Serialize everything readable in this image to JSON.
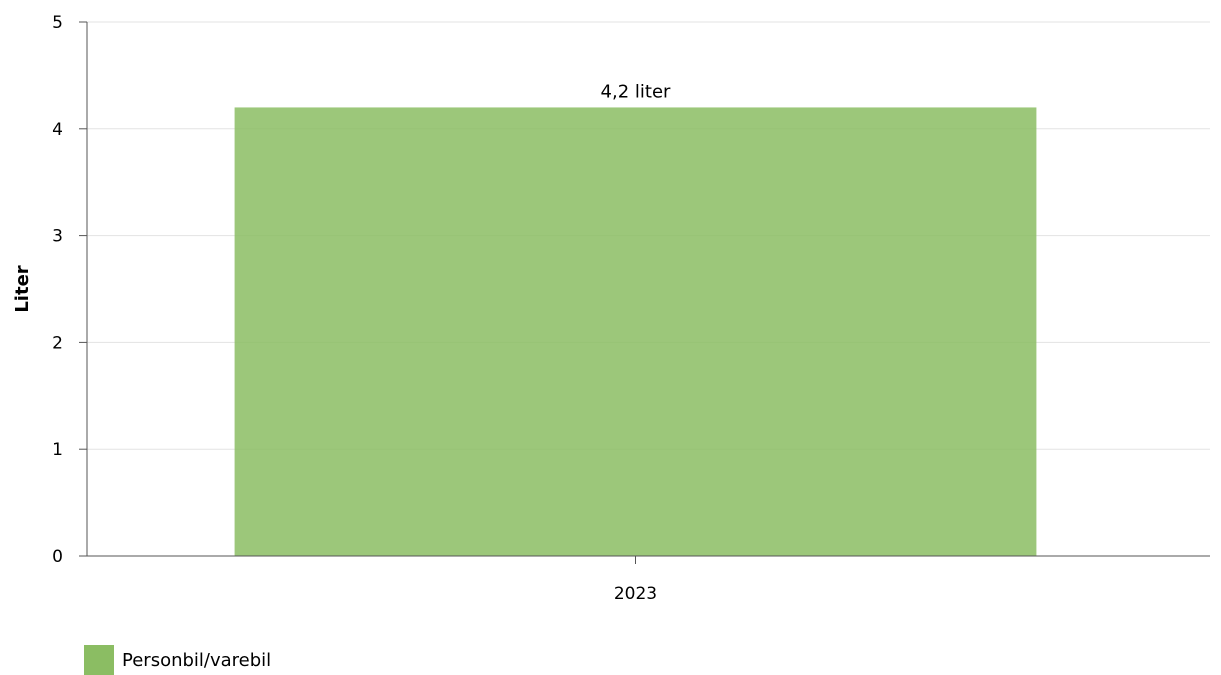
{
  "chart_data": {
    "type": "bar",
    "categories": [
      "2023"
    ],
    "series": [
      {
        "name": "Personbil/varebil",
        "values": [
          4.2
        ],
        "labels": [
          "4,2 liter"
        ],
        "color": "#8bbd63"
      }
    ],
    "ylabel": "Liter",
    "xlabel": "",
    "ylim": [
      0,
      5
    ],
    "yticks": [
      "0",
      "1",
      "2",
      "3",
      "4",
      "5"
    ],
    "grid": true,
    "legend_position": "bottom-left"
  }
}
